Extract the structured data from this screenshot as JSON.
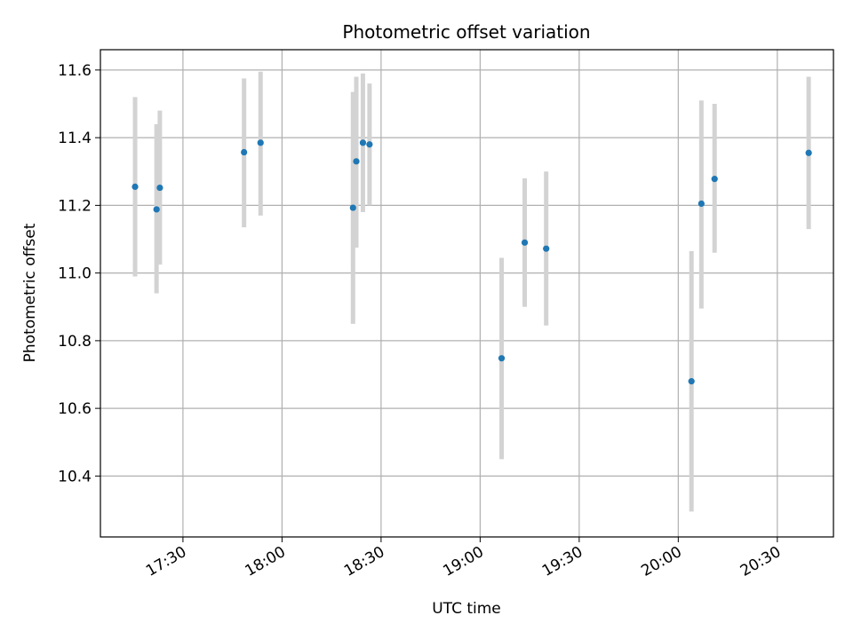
{
  "chart_data": {
    "type": "scatter",
    "title": "Photometric offset variation",
    "xlabel": "UTC time",
    "ylabel": "Photometric offset",
    "xlim": [
      "17:05",
      "20:47"
    ],
    "ylim": [
      10.22,
      11.66
    ],
    "xticks": [
      "17:30",
      "18:00",
      "18:30",
      "19:00",
      "19:30",
      "20:00",
      "20:30"
    ],
    "yticks": [
      "10.4",
      "10.6",
      "10.8",
      "11.0",
      "11.2",
      "11.4",
      "11.6"
    ],
    "grid": true,
    "colors": {
      "point": "#1f77b4",
      "errorbar": "#d3d3d3",
      "grid": "#b0b0b0"
    },
    "series": [
      {
        "points": [
          {
            "x": "17:15:30",
            "y": 11.255,
            "ylo": 10.99,
            "yhi": 11.52
          },
          {
            "x": "17:22:00",
            "y": 11.188,
            "ylo": 10.94,
            "yhi": 11.44
          },
          {
            "x": "17:23:00",
            "y": 11.252,
            "ylo": 11.025,
            "yhi": 11.48
          },
          {
            "x": "17:48:30",
            "y": 11.357,
            "ylo": 11.135,
            "yhi": 11.575
          },
          {
            "x": "17:53:30",
            "y": 11.385,
            "ylo": 11.17,
            "yhi": 11.595
          },
          {
            "x": "18:21:30",
            "y": 11.193,
            "ylo": 10.85,
            "yhi": 11.535
          },
          {
            "x": "18:22:30",
            "y": 11.33,
            "ylo": 11.075,
            "yhi": 11.58
          },
          {
            "x": "18:24:30",
            "y": 11.385,
            "ylo": 11.18,
            "yhi": 11.59
          },
          {
            "x": "18:26:30",
            "y": 11.38,
            "ylo": 11.2,
            "yhi": 11.56
          },
          {
            "x": "19:06:30",
            "y": 10.748,
            "ylo": 10.45,
            "yhi": 11.045
          },
          {
            "x": "19:13:30",
            "y": 11.09,
            "ylo": 10.9,
            "yhi": 11.28
          },
          {
            "x": "19:20:00",
            "y": 11.072,
            "ylo": 10.845,
            "yhi": 11.3
          },
          {
            "x": "20:04:00",
            "y": 10.68,
            "ylo": 10.295,
            "yhi": 11.065
          },
          {
            "x": "20:07:00",
            "y": 11.205,
            "ylo": 10.895,
            "yhi": 11.51
          },
          {
            "x": "20:11:00",
            "y": 11.278,
            "ylo": 11.06,
            "yhi": 11.5
          },
          {
            "x": "20:39:30",
            "y": 11.355,
            "ylo": 11.13,
            "yhi": 11.58
          }
        ]
      }
    ]
  }
}
